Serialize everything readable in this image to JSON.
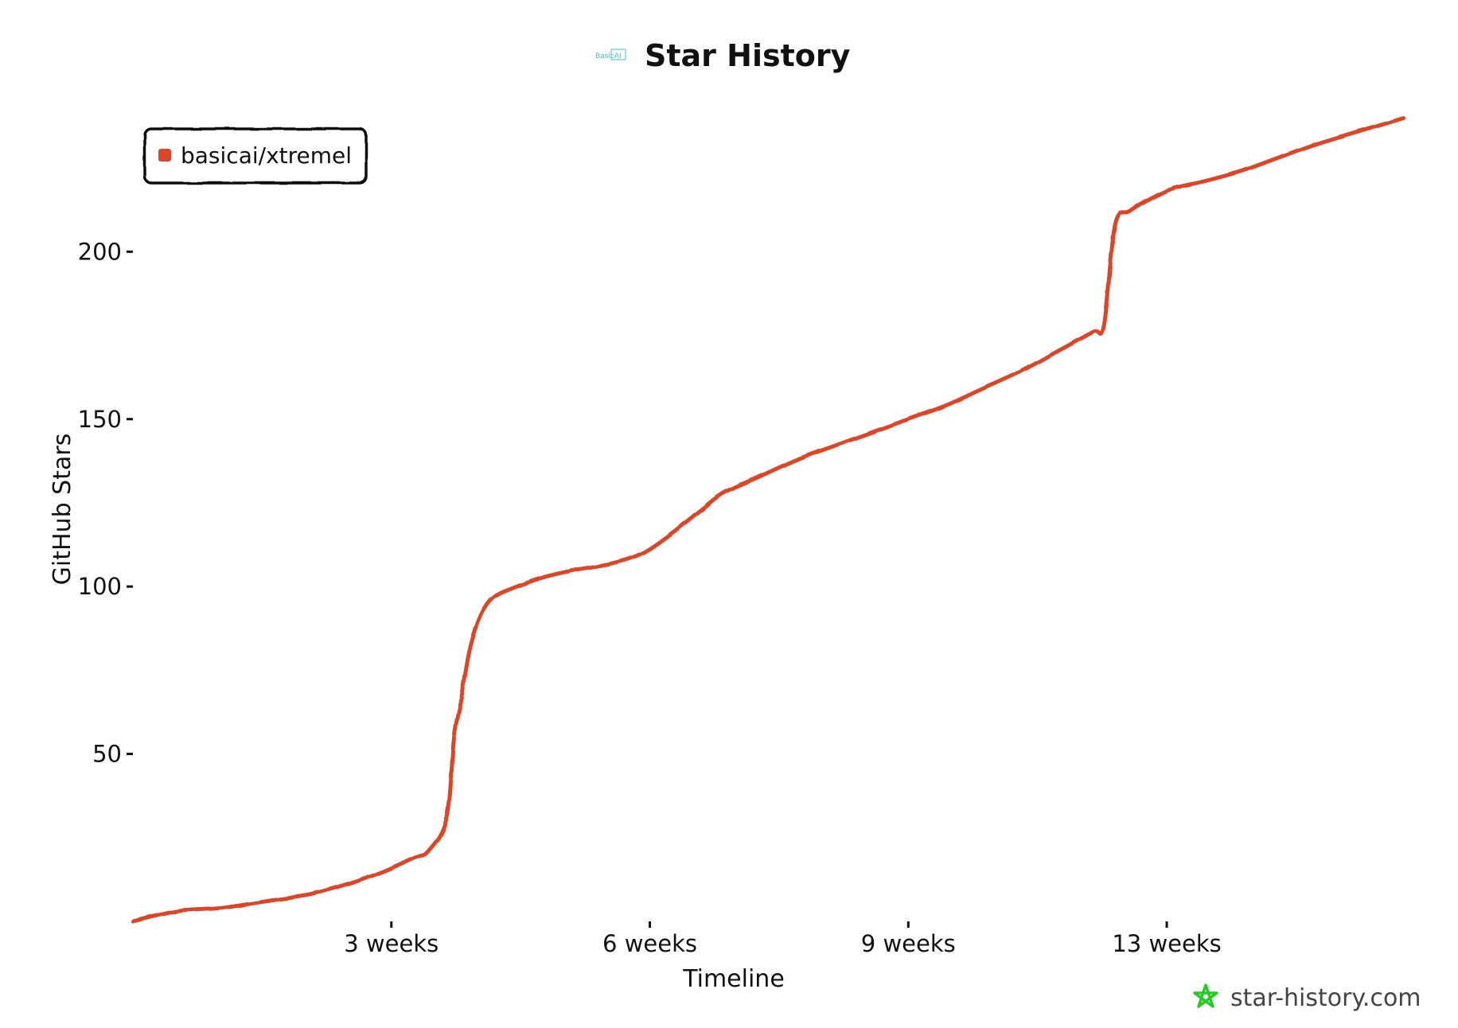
{
  "header": {
    "title": "Star History",
    "logo_text": "BasicAI",
    "logo_icon": "basicai-logo-icon"
  },
  "watermark": {
    "text": "star-history.com",
    "icon": "star-history-star-icon",
    "icon_color": "#22cc22"
  },
  "chart_data": {
    "type": "line",
    "title": "Star History",
    "xlabel": "Timeline",
    "ylabel": "GitHub Stars",
    "x_unit": "weeks",
    "xlim": [
      0,
      17.2
    ],
    "ylim": [
      0,
      240
    ],
    "y_ticks": [
      {
        "value": 50,
        "label": "50"
      },
      {
        "value": 100,
        "label": "100"
      },
      {
        "value": 150,
        "label": "150"
      },
      {
        "value": 200,
        "label": "200"
      }
    ],
    "x_ticks": [
      {
        "value": 3.5,
        "label": "3 weeks"
      },
      {
        "value": 7.0,
        "label": "6 weeks"
      },
      {
        "value": 10.5,
        "label": "9 weeks"
      },
      {
        "value": 14.0,
        "label": "13 weeks"
      }
    ],
    "grid": false,
    "legend_position": "top-left",
    "series": [
      {
        "name": "basicai/xtremel",
        "color": "#dd4528",
        "x": [
          0,
          0.6,
          1.2,
          1.8,
          2.4,
          2.9,
          3.4,
          3.8,
          4.0,
          4.25,
          4.35,
          4.45,
          4.55,
          4.65,
          4.75,
          4.9,
          5.2,
          5.6,
          6.0,
          6.5,
          6.9,
          7.3,
          7.7,
          8.0,
          8.5,
          9.0,
          9.5,
          10.0,
          10.5,
          11.0,
          11.5,
          12.0,
          12.5,
          13.0,
          13.15,
          13.3,
          13.5,
          13.8,
          14.1,
          14.5,
          15.0,
          15.5,
          16.0,
          16.6,
          17.2
        ],
        "values": [
          0,
          3,
          4,
          6,
          8,
          11,
          15,
          19,
          21,
          31,
          55,
          67,
          80,
          88,
          93,
          97,
          100,
          103,
          105,
          107,
          110,
          116,
          123,
          128,
          133,
          138,
          142,
          146,
          150,
          154,
          159,
          164,
          170,
          176,
          178,
          208,
          212,
          216,
          219,
          221,
          224,
          228,
          232,
          236,
          240
        ]
      }
    ]
  }
}
